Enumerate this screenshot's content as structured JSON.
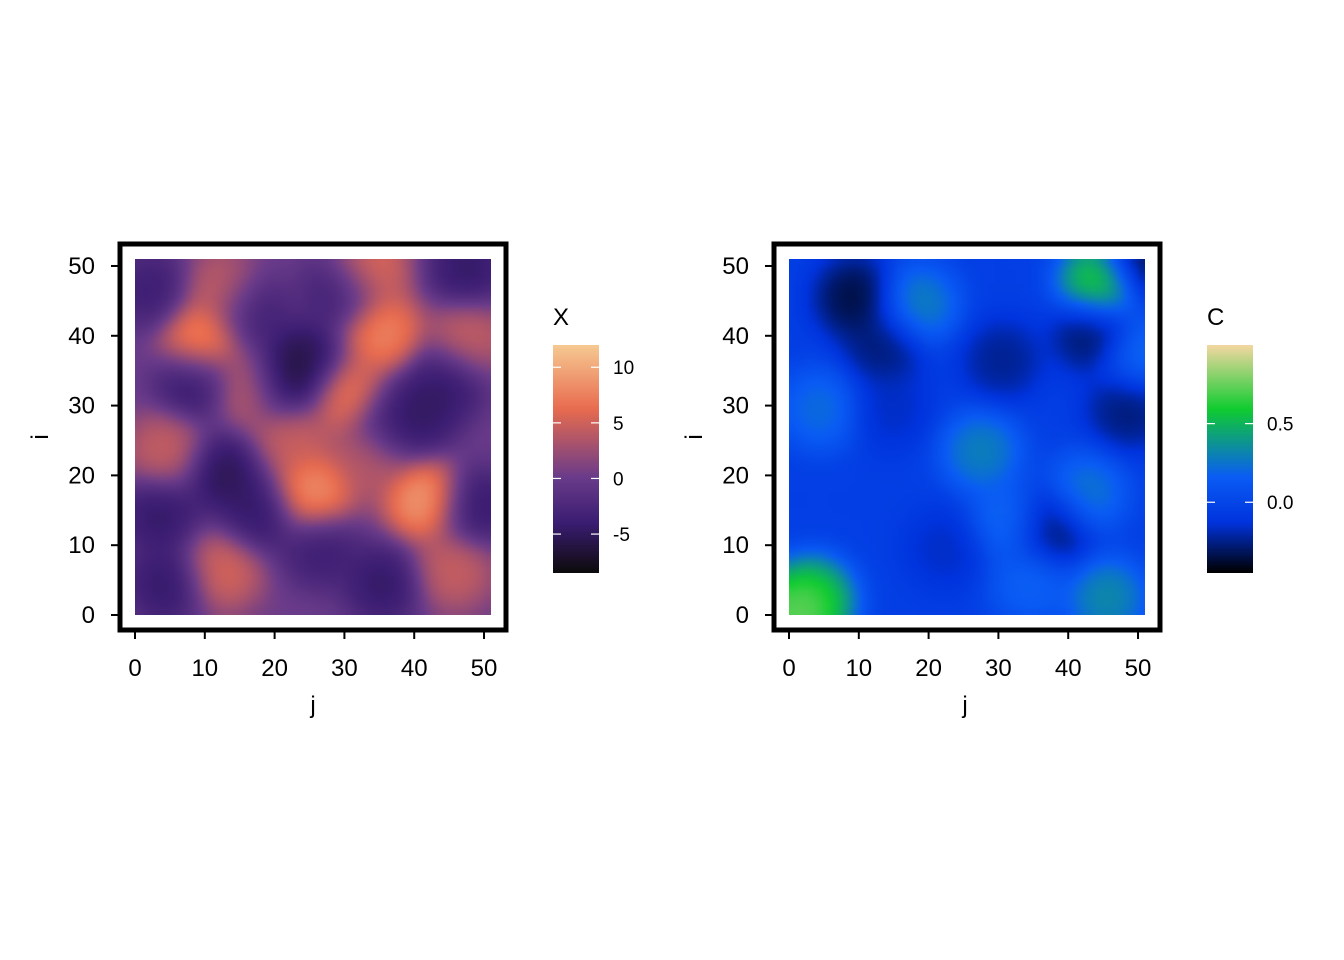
{
  "chart_data": [
    {
      "type": "heatmap",
      "title": "",
      "xlabel": "j",
      "ylabel": "i",
      "xlim": [
        0,
        51
      ],
      "ylim": [
        0,
        51
      ],
      "x_ticks": [
        "0",
        "10",
        "20",
        "30",
        "40",
        "50"
      ],
      "y_ticks": [
        "0",
        "10",
        "20",
        "30",
        "40",
        "50"
      ],
      "legend": {
        "title": "X",
        "ticks": [
          "10",
          "5",
          "0",
          "-5"
        ],
        "tick_values": [
          10,
          5,
          0,
          -5
        ],
        "range": [
          -8.5,
          12
        ],
        "placement": "right"
      },
      "colors": {
        "low": "#0d0b0d",
        "mid_low": "#3b1d72",
        "mid": "#6a3b8a",
        "mid_high": "#e86b4f",
        "high": "#f6c991"
      },
      "features": [
        {
          "j": 9,
          "i": 40,
          "value": 11
        },
        {
          "j": 35,
          "i": 41,
          "value": 10
        },
        {
          "j": 47,
          "i": 40,
          "value": 6
        },
        {
          "j": 30,
          "i": 32,
          "value": 9
        },
        {
          "j": 25,
          "i": 18,
          "value": 11
        },
        {
          "j": 41,
          "i": 17,
          "value": 12
        },
        {
          "j": 22,
          "i": 26,
          "value": 6
        },
        {
          "j": 4,
          "i": 24,
          "value": 6
        },
        {
          "j": 12,
          "i": 7,
          "value": 7
        },
        {
          "j": 33,
          "i": 50,
          "value": 8
        },
        {
          "j": 16,
          "i": 33,
          "value": 6
        },
        {
          "j": 45,
          "i": 7,
          "value": 6
        },
        {
          "j": 33,
          "i": 23,
          "value": 5
        },
        {
          "j": 12,
          "i": 47,
          "value": 6
        },
        {
          "j": 21,
          "i": 34,
          "value": -8.5
        },
        {
          "j": 24,
          "i": 37,
          "value": -7
        },
        {
          "j": 12,
          "i": 21,
          "value": -7
        },
        {
          "j": 3,
          "i": 15,
          "value": -6
        },
        {
          "j": 40,
          "i": 29,
          "value": -6
        },
        {
          "j": 44,
          "i": 34,
          "value": -6
        },
        {
          "j": 48,
          "i": 16,
          "value": -6
        },
        {
          "j": 4,
          "i": 5,
          "value": -6
        },
        {
          "j": 17,
          "i": 15,
          "value": -6
        },
        {
          "j": 35,
          "i": 5,
          "value": -6
        },
        {
          "j": 26,
          "i": 10,
          "value": -5
        },
        {
          "j": 8,
          "i": 34,
          "value": -6
        },
        {
          "j": 16,
          "i": 44,
          "value": -5
        },
        {
          "j": 29,
          "i": 47,
          "value": -5
        },
        {
          "j": 47,
          "i": 50,
          "value": -6
        },
        {
          "j": 36,
          "i": 28,
          "value": -5
        },
        {
          "j": 2,
          "i": 47,
          "value": -5
        }
      ]
    },
    {
      "type": "heatmap",
      "title": "",
      "xlabel": "j",
      "ylabel": "i",
      "xlim": [
        0,
        51
      ],
      "ylim": [
        0,
        51
      ],
      "x_ticks": [
        "0",
        "10",
        "20",
        "30",
        "40",
        "50"
      ],
      "y_ticks": [
        "0",
        "10",
        "20",
        "30",
        "40",
        "50"
      ],
      "legend": {
        "title": "C",
        "ticks": [
          "0.5",
          "0.0"
        ],
        "tick_values": [
          0.5,
          0.0
        ],
        "range": [
          -0.45,
          1.0
        ],
        "placement": "right"
      },
      "colors": {
        "low": "#000000",
        "mid_low": "#0033dd",
        "mid": "#0a5cf5",
        "mid_high": "#10cc30",
        "high": "#f2d7a0"
      },
      "features": [
        {
          "j": 1,
          "i": 1,
          "value": 1.0
        },
        {
          "j": 3,
          "i": 3,
          "value": 0.7
        },
        {
          "j": 44,
          "i": 48,
          "value": 0.85
        },
        {
          "j": 45,
          "i": 3,
          "value": 0.45
        },
        {
          "j": 18,
          "i": 45,
          "value": 0.4
        },
        {
          "j": 27,
          "i": 24,
          "value": 0.4
        },
        {
          "j": 42,
          "i": 18,
          "value": 0.35
        },
        {
          "j": 31,
          "i": 14,
          "value": 0.3
        },
        {
          "j": 4,
          "i": 30,
          "value": 0.3
        },
        {
          "j": 50,
          "i": 38,
          "value": 0.3
        },
        {
          "j": 34,
          "i": 5,
          "value": 0.25
        },
        {
          "j": 9,
          "i": 46,
          "value": -0.45
        },
        {
          "j": 13,
          "i": 39,
          "value": -0.35
        },
        {
          "j": 43,
          "i": 41,
          "value": -0.4
        },
        {
          "j": 37,
          "i": 13,
          "value": -0.4
        },
        {
          "j": 48,
          "i": 30,
          "value": -0.35
        },
        {
          "j": 30,
          "i": 37,
          "value": -0.3
        },
        {
          "j": 50,
          "i": 51,
          "value": -0.45
        },
        {
          "j": 14,
          "i": 30,
          "value": -0.2
        },
        {
          "j": 22,
          "i": 10,
          "value": -0.2
        }
      ]
    }
  ]
}
